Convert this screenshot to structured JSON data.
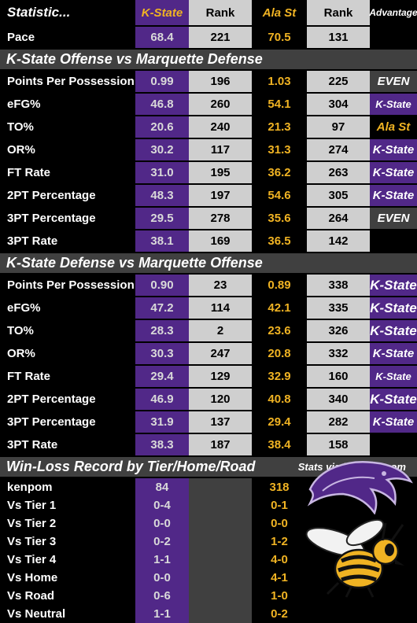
{
  "header": {
    "stat": "Statistic...",
    "team1": "K-State",
    "rank1": "Rank",
    "team2": "Ala St",
    "rank2": "Rank",
    "adv": "Advantage"
  },
  "pace": {
    "label": "Pace",
    "ks": "68.4",
    "rk1": "221",
    "al": "70.5",
    "rk2": "131",
    "adv": ""
  },
  "section1": "K-State Offense vs Marquette Defense",
  "offense": [
    {
      "label": "Points Per Possession",
      "ks": "0.99",
      "rk1": "196",
      "al": "1.03",
      "rk2": "225",
      "adv": "EVEN",
      "advType": "even"
    },
    {
      "label": "eFG%",
      "ks": "46.8",
      "rk1": "260",
      "al": "54.1",
      "rk2": "304",
      "adv": "K-State",
      "advType": "ks"
    },
    {
      "label": "TO%",
      "ks": "20.6",
      "rk1": "240",
      "al": "21.3",
      "rk2": "97",
      "adv": "Ala St",
      "advType": "al"
    },
    {
      "label": "OR%",
      "ks": "30.2",
      "rk1": "117",
      "al": "31.3",
      "rk2": "274",
      "adv": "K-State",
      "advType": "ks-med"
    },
    {
      "label": "FT Rate",
      "ks": "31.0",
      "rk1": "195",
      "al": "36.2",
      "rk2": "263",
      "adv": "K-State",
      "advType": "ks-med"
    },
    {
      "label": "2PT Percentage",
      "ks": "48.3",
      "rk1": "197",
      "al": "54.6",
      "rk2": "305",
      "adv": "K-State",
      "advType": "ks-med"
    },
    {
      "label": "3PT Percentage",
      "ks": "29.5",
      "rk1": "278",
      "al": "35.6",
      "rk2": "264",
      "adv": "EVEN",
      "advType": "even"
    },
    {
      "label": "3PT Rate",
      "ks": "38.1",
      "rk1": "169",
      "al": "36.5",
      "rk2": "142",
      "adv": "",
      "advType": "none"
    }
  ],
  "section2": "K-State Defense vs Marquette Offense",
  "defense": [
    {
      "label": "Points Per Possession",
      "ks": "0.90",
      "rk1": "23",
      "al": "0.89",
      "rk2": "338",
      "adv": "K-State",
      "advType": "ks-big"
    },
    {
      "label": "eFG%",
      "ks": "47.2",
      "rk1": "114",
      "al": "42.1",
      "rk2": "335",
      "adv": "K-State",
      "advType": "ks-big"
    },
    {
      "label": "TO%",
      "ks": "28.3",
      "rk1": "2",
      "al": "23.6",
      "rk2": "326",
      "adv": "K-State",
      "advType": "ks-big"
    },
    {
      "label": "OR%",
      "ks": "30.3",
      "rk1": "247",
      "al": "20.8",
      "rk2": "332",
      "adv": "K-State",
      "advType": "ks-med"
    },
    {
      "label": "FT Rate",
      "ks": "29.4",
      "rk1": "129",
      "al": "32.9",
      "rk2": "160",
      "adv": "K-State",
      "advType": "ks"
    },
    {
      "label": "2PT Percentage",
      "ks": "46.9",
      "rk1": "120",
      "al": "40.8",
      "rk2": "340",
      "adv": "K-State",
      "advType": "ks-big"
    },
    {
      "label": "3PT Percentage",
      "ks": "31.9",
      "rk1": "137",
      "al": "29.4",
      "rk2": "282",
      "adv": "K-State",
      "advType": "ks-med"
    },
    {
      "label": "3PT Rate",
      "ks": "38.3",
      "rk1": "187",
      "al": "38.4",
      "rk2": "158",
      "adv": "",
      "advType": "none"
    }
  ],
  "section3": "Win-Loss Record by Tier/Home/Road",
  "credit": "Stats via kenpom.com",
  "records": [
    {
      "label": "kenpom",
      "ks": "84",
      "al": "318"
    },
    {
      "label": "Vs Tier 1",
      "ks": "0-4",
      "al": "0-1"
    },
    {
      "label": "Vs Tier 2",
      "ks": "0-0",
      "al": "0-0"
    },
    {
      "label": "Vs Tier 3",
      "ks": "0-2",
      "al": "1-2"
    },
    {
      "label": "Vs Tier 4",
      "ks": "1-1",
      "al": "4-0"
    },
    {
      "label": "Vs Home",
      "ks": "0-0",
      "al": "4-1"
    },
    {
      "label": "Vs Road",
      "ks": "0-6",
      "al": "1-0"
    },
    {
      "label": "Vs Neutral",
      "ks": "1-1",
      "al": "0-2"
    }
  ],
  "colors": {
    "ksPurple": "#512888",
    "alGold": "#f0b323",
    "rankGray": "#cfcfcf",
    "sectionGray": "#404040"
  },
  "icons": {
    "ks": "wildcat-logo-icon",
    "al": "hornet-logo-icon"
  }
}
